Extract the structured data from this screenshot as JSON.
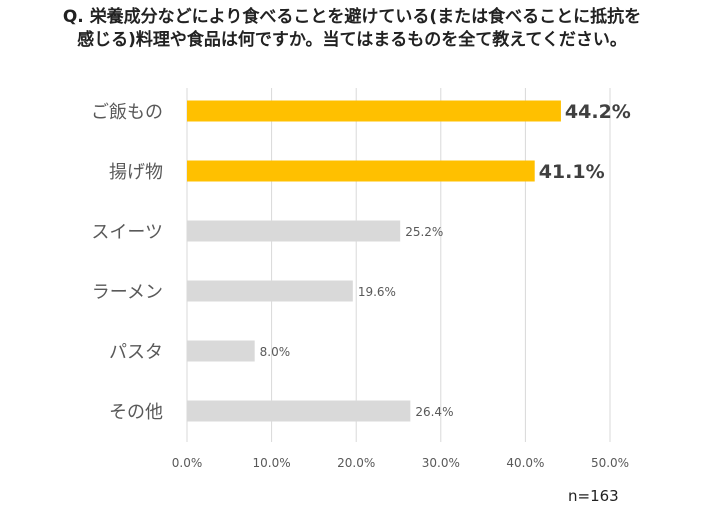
{
  "title_lines": [
    "Q. 栄養成分などにより食べることを避けている(または食べることに抵抗を",
    "感じる)料理や食品は何ですか。当てはまるものを全て教えてください。"
  ],
  "note": "n=163",
  "colors": {
    "highlight": "#FFC000",
    "normal": "#D9D9D9",
    "grid": "#D9D9D9"
  },
  "chart_data": {
    "type": "bar",
    "orientation": "horizontal",
    "categories": [
      "ご飯もの",
      "揚げ物",
      "スイーツ",
      "ラーメン",
      "パスタ",
      "その他"
    ],
    "values": [
      44.2,
      41.1,
      25.2,
      19.6,
      8.0,
      26.4
    ],
    "value_labels": [
      "44.2%",
      "41.1%",
      "25.2%",
      "19.6%",
      "8.0%",
      "26.4%"
    ],
    "highlighted": [
      true,
      true,
      false,
      false,
      false,
      false
    ],
    "xlim": [
      0,
      50
    ],
    "xticks": [
      0,
      10,
      20,
      30,
      40,
      50
    ],
    "xtick_labels": [
      "0.0%",
      "10.0%",
      "20.0%",
      "30.0%",
      "40.0%",
      "50.0%"
    ],
    "grid": "vertical"
  }
}
